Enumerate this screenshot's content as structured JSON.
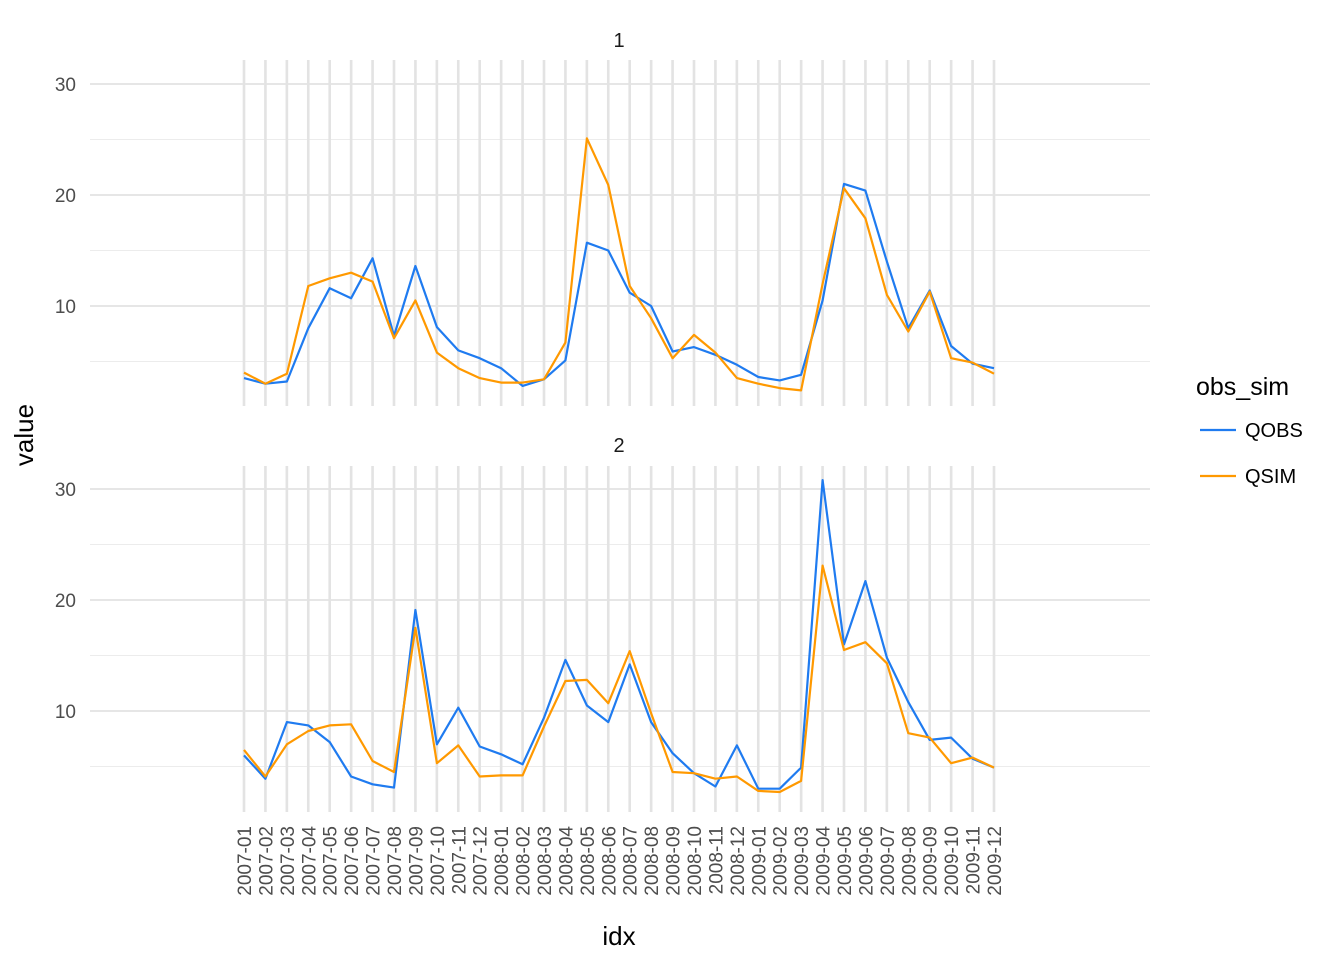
{
  "chart_data": {
    "type": "line",
    "xlabel": "idx",
    "ylabel": "value",
    "legend": {
      "title": "obs_sim",
      "position": "right"
    },
    "colors": {
      "QOBS": "#1f7bf0",
      "QSIM": "#ff9900"
    },
    "grid": true,
    "ylim": [
      0,
      32
    ],
    "yticks": [
      10,
      20,
      30
    ],
    "yticklabels": [
      "10",
      "20",
      "30"
    ],
    "x": [
      "2007-01",
      "2007-02",
      "2007-03",
      "2007-04",
      "2007-05",
      "2007-06",
      "2007-07",
      "2007-08",
      "2007-09",
      "2007-10",
      "2007-11",
      "2007-12",
      "2008-01",
      "2008-02",
      "2008-03",
      "2008-04",
      "2008-05",
      "2008-06",
      "2008-07",
      "2008-08",
      "2008-09",
      "2008-10",
      "2008-11",
      "2008-12",
      "2009-01",
      "2009-02",
      "2009-03",
      "2009-04",
      "2009-05",
      "2009-06",
      "2009-07",
      "2009-08",
      "2009-09",
      "2009-10",
      "2009-11",
      "2009-12"
    ],
    "panels": [
      {
        "strip": "1",
        "series": [
          {
            "name": "QOBS",
            "values": [
              3.5,
              3.0,
              3.2,
              8.0,
              11.6,
              10.7,
              14.3,
              7.3,
              13.6,
              8.1,
              6.0,
              5.3,
              4.4,
              2.8,
              3.4,
              5.1,
              15.7,
              15.0,
              11.2,
              10.0,
              5.9,
              6.3,
              5.6,
              4.7,
              3.6,
              3.3,
              3.8,
              10.5,
              21.0,
              20.4,
              14.0,
              8.0,
              11.4,
              6.4,
              4.8,
              4.4
            ]
          },
          {
            "name": "QSIM",
            "values": [
              4.0,
              3.0,
              3.9,
              11.8,
              12.5,
              13.0,
              12.2,
              7.1,
              10.5,
              5.8,
              4.4,
              3.5,
              3.1,
              3.1,
              3.4,
              6.7,
              25.1,
              20.9,
              11.8,
              8.9,
              5.3,
              7.4,
              5.8,
              3.5,
              3.0,
              2.6,
              2.4,
              12.0,
              20.6,
              17.9,
              11.0,
              7.7,
              11.3,
              5.3,
              4.9,
              3.9
            ]
          }
        ]
      },
      {
        "strip": "2",
        "series": [
          {
            "name": "QOBS",
            "values": [
              6.0,
              3.9,
              9.0,
              8.7,
              7.2,
              4.1,
              3.4,
              3.1,
              19.1,
              7.0,
              10.3,
              6.8,
              6.1,
              5.2,
              9.4,
              14.6,
              10.5,
              9.0,
              14.2,
              9.0,
              6.2,
              4.4,
              3.2,
              6.9,
              3.0,
              3.0,
              4.9,
              30.8,
              16.0,
              21.7,
              14.8,
              10.8,
              7.4,
              7.6,
              5.7,
              4.9
            ]
          },
          {
            "name": "QSIM",
            "values": [
              6.5,
              4.1,
              7.0,
              8.2,
              8.7,
              8.8,
              5.5,
              4.5,
              17.5,
              5.3,
              6.9,
              4.1,
              4.2,
              4.2,
              8.6,
              12.7,
              12.8,
              10.7,
              15.4,
              9.8,
              4.5,
              4.4,
              3.9,
              4.1,
              2.8,
              2.7,
              3.7,
              23.1,
              15.5,
              16.2,
              14.3,
              8.0,
              7.6,
              5.3,
              5.8,
              4.9
            ]
          }
        ]
      }
    ]
  }
}
